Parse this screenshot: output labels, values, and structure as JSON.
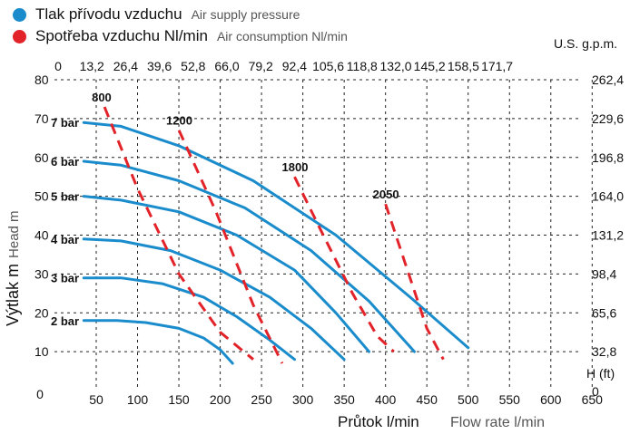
{
  "legend": {
    "supply": {
      "cz": "Tlak přívodu vzduchu",
      "en": "Air supply pressure",
      "color": "#1a8ccc"
    },
    "consumption": {
      "cz": "Spotřeba vzduchu Nl/min",
      "en": "Air consumption Nl/min",
      "color": "#e2232a"
    }
  },
  "axes": {
    "x_bottom": {
      "cz": "Průtok l/min",
      "en": "Flow rate l/min"
    },
    "y_left": {
      "cz": "Výtlak m",
      "en": "Head m"
    },
    "top_unit": "U.S. g.p.m.",
    "right_unit": "H (ft)"
  },
  "chart_data": {
    "type": "line",
    "x_range": [
      25,
      650
    ],
    "y_range": [
      0,
      80
    ],
    "grid": true,
    "x_ticks": [
      "50",
      "100",
      "150",
      "200",
      "250",
      "300",
      "350",
      "400",
      "450",
      "500",
      "550",
      "600",
      "650"
    ],
    "x_zero_label": "0",
    "y_ticks": [
      "0",
      "10",
      "20",
      "30",
      "40",
      "50",
      "60",
      "70",
      "80"
    ],
    "top_ticks": [
      "0",
      "13,2",
      "26,4",
      "39,6",
      "52,8",
      "66,0",
      "79,2",
      "92,4",
      "105,6",
      "118,8",
      "132,0",
      "145,2",
      "158,5",
      "171,7"
    ],
    "right_ticks": [
      "0",
      "32,8",
      "65,6",
      "98,4",
      "131,2",
      "164,0",
      "196,8",
      "229,6",
      "262,4"
    ],
    "pressure_series": [
      {
        "name": "2 bar",
        "x": [
          35,
          75,
          110,
          150,
          180,
          200,
          215
        ],
        "y": [
          18,
          18,
          17.5,
          16,
          13.5,
          10.5,
          7
        ]
      },
      {
        "name": "3 bar",
        "x": [
          35,
          80,
          130,
          180,
          220,
          260,
          290
        ],
        "y": [
          29,
          29,
          27.5,
          24,
          19,
          13,
          8
        ]
      },
      {
        "name": "4 bar",
        "x": [
          35,
          80,
          140,
          200,
          260,
          310,
          350
        ],
        "y": [
          39,
          38.5,
          36,
          31,
          24,
          16,
          8
        ]
      },
      {
        "name": "5 bar",
        "x": [
          35,
          80,
          150,
          220,
          290,
          340,
          380
        ],
        "y": [
          50,
          49,
          46,
          40,
          31,
          20,
          10
        ]
      },
      {
        "name": "6 bar",
        "x": [
          35,
          80,
          150,
          230,
          310,
          380,
          435
        ],
        "y": [
          59,
          58,
          54,
          47,
          36,
          23,
          10
        ]
      },
      {
        "name": "7 bar",
        "x": [
          35,
          80,
          150,
          240,
          340,
          430,
          500
        ],
        "y": [
          69,
          68,
          63,
          54,
          40,
          24,
          11
        ]
      }
    ],
    "consumption_series": [
      {
        "name": "800",
        "x": [
          60,
          100,
          150,
          200,
          240
        ],
        "y": [
          73,
          52,
          30,
          15,
          8
        ]
      },
      {
        "name": "1200",
        "x": [
          150,
          195,
          240,
          275
        ],
        "y": [
          67,
          46,
          22,
          7
        ]
      },
      {
        "name": "1800",
        "x": [
          290,
          320,
          360,
          390,
          410
        ],
        "y": [
          55,
          42,
          25,
          14,
          10
        ]
      },
      {
        "name": "2050",
        "x": [
          400,
          425,
          450,
          470
        ],
        "y": [
          48,
          32,
          16,
          8
        ]
      }
    ]
  }
}
